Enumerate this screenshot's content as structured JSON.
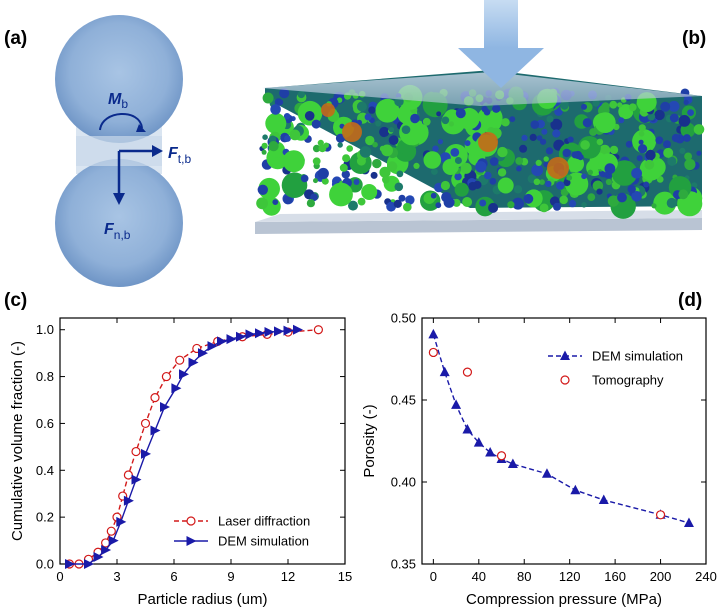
{
  "panel_labels": {
    "a": "(a)",
    "b": "(b)",
    "c": "(c)",
    "d": "(d)"
  },
  "schematic": {
    "moment_symbol": "M",
    "moment_sub": "b",
    "tangential_symbol": "F",
    "tangential_sub": "t,b",
    "normal_symbol": "F",
    "normal_sub": "n,b",
    "sphere_color": "#9dbbdd",
    "arrow_color": "#0a2a8c"
  },
  "colors": {
    "dem": "#1a1aa8",
    "laser": "#d21818",
    "tomo": "#d21818"
  },
  "chart_data": [
    {
      "type": "line",
      "title": "",
      "xlabel": "Particle radius (um)",
      "ylabel": "Cumulative volume fraction (-)",
      "xlim": [
        0,
        15
      ],
      "ylim": [
        0,
        1.05
      ],
      "xticks": [
        0,
        3,
        6,
        9,
        12,
        15
      ],
      "yticks": [
        0.0,
        0.2,
        0.4,
        0.6,
        0.8,
        1.0
      ],
      "xtick_labels": [
        "0",
        "3",
        "6",
        "9",
        "12",
        "15"
      ],
      "ytick_labels": [
        "0.0",
        "0.2",
        "0.4",
        "0.6",
        "0.8",
        "1.0"
      ],
      "legend_position": "bottom-right",
      "series": [
        {
          "name": "Laser diffraction",
          "style": "dashed-open-circle",
          "x": [
            0.5,
            1.0,
            1.5,
            2.0,
            2.4,
            2.7,
            3.0,
            3.3,
            3.6,
            4.0,
            4.5,
            5.0,
            5.6,
            6.3,
            7.2,
            8.3,
            9.6,
            10.9,
            12.0,
            13.6
          ],
          "y": [
            0.0,
            0.0,
            0.02,
            0.05,
            0.09,
            0.14,
            0.2,
            0.29,
            0.38,
            0.48,
            0.6,
            0.71,
            0.8,
            0.87,
            0.92,
            0.95,
            0.97,
            0.98,
            0.99,
            1.0
          ]
        },
        {
          "name": "DEM simulation",
          "style": "solid-right-triangle",
          "x": [
            0.5,
            1.5,
            2.0,
            2.4,
            2.8,
            3.2,
            3.6,
            4.0,
            4.5,
            5.0,
            5.5,
            6.1,
            6.5,
            7.0,
            7.5,
            8.0,
            8.5,
            9.0,
            9.5,
            10.0,
            10.5,
            11.0,
            11.5,
            12.0,
            12.5
          ],
          "y": [
            0.0,
            0.0,
            0.03,
            0.06,
            0.1,
            0.18,
            0.27,
            0.36,
            0.47,
            0.57,
            0.67,
            0.75,
            0.81,
            0.86,
            0.9,
            0.93,
            0.95,
            0.96,
            0.97,
            0.98,
            0.985,
            0.99,
            0.993,
            0.996,
            1.0
          ]
        }
      ]
    },
    {
      "type": "line",
      "title": "",
      "xlabel": "Compression pressure (MPa)",
      "ylabel": "Porosity (-)",
      "xlim": [
        -10,
        240
      ],
      "ylim": [
        0.35,
        0.5
      ],
      "xticks": [
        0,
        40,
        80,
        120,
        160,
        200,
        240
      ],
      "yticks": [
        0.35,
        0.4,
        0.45,
        0.5
      ],
      "xtick_labels": [
        "0",
        "40",
        "80",
        "120",
        "160",
        "200",
        "240"
      ],
      "ytick_labels": [
        "0.35",
        "0.40",
        "0.45",
        "0.50"
      ],
      "legend_position": "top-right",
      "series": [
        {
          "name": "DEM simulation",
          "style": "dashed-filled-triangle",
          "x": [
            0,
            10,
            20,
            30,
            40,
            50,
            60,
            70,
            100,
            125,
            150,
            200,
            225
          ],
          "y": [
            0.49,
            0.467,
            0.447,
            0.432,
            0.424,
            0.418,
            0.414,
            0.411,
            0.405,
            0.395,
            0.389,
            0.38,
            0.375
          ]
        },
        {
          "name": "Tomography",
          "style": "open-circle",
          "x": [
            0,
            30,
            60,
            200
          ],
          "y": [
            0.479,
            0.467,
            0.416,
            0.38
          ]
        }
      ]
    }
  ]
}
